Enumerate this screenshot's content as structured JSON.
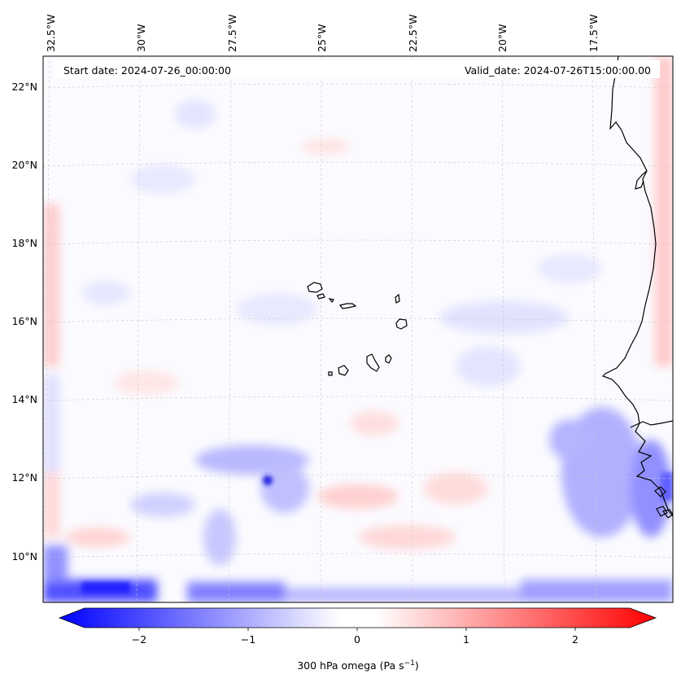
{
  "header": {
    "start_date": "Start date: 2024-07-26_00:00:00",
    "valid_date": "Valid_date: 2024-07-26T15:00:00.00"
  },
  "lon_labels": [
    "32.5°W",
    "30°W",
    "27.5°W",
    "25°W",
    "22.5°W",
    "20°W",
    "17.5°W"
  ],
  "lat_labels": [
    "22°N",
    "20°N",
    "18°N",
    "16°N",
    "14°N",
    "12°N",
    "10°N"
  ],
  "colorbar": {
    "ticks": [
      "−2",
      "−1",
      "0",
      "1",
      "2"
    ],
    "tick_values": [
      -2,
      -1,
      0,
      1,
      2
    ],
    "range": [
      -2.5,
      2.5
    ],
    "label_main": "300 hPa omega (Pa s",
    "label_exp": "−1",
    "label_tail": ")",
    "colors": {
      "negative": "#0000ff",
      "neutral": "#ffffff",
      "positive": "#ff0000"
    }
  },
  "map": {
    "coastline_color": "#000000",
    "grid_color": "#c8c8c8"
  }
}
